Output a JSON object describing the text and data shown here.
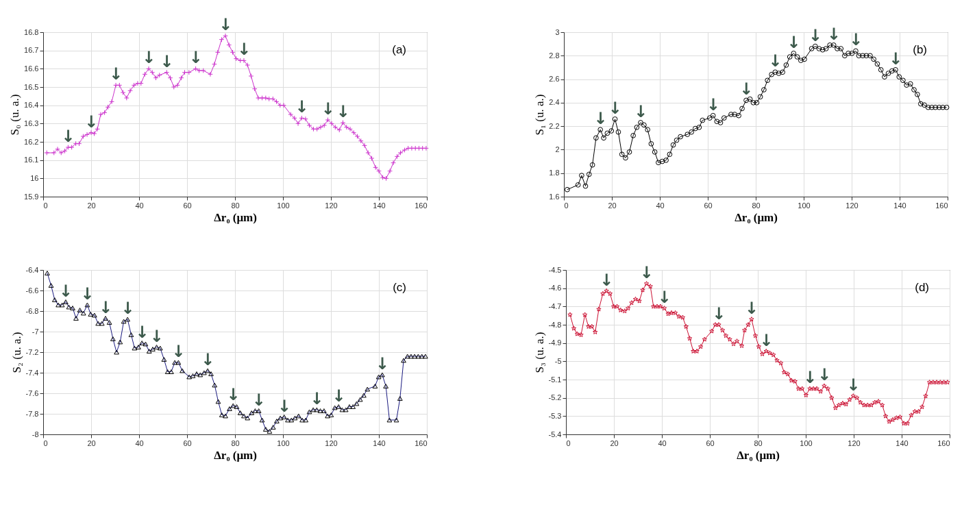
{
  "chart_data": [
    {
      "type": "line",
      "xlabel": "Δr₀ (μm)",
      "ylabel": "S₀ (u. a.)",
      "xlim": [
        0,
        160
      ],
      "xticks": [
        0,
        20,
        40,
        60,
        80,
        100,
        120,
        140,
        160
      ],
      "ylim": [
        15.9,
        16.8
      ],
      "yticks": [
        15.9,
        16,
        16.1,
        16.2,
        16.3,
        16.4,
        16.5,
        16.6,
        16.7,
        16.8
      ],
      "grid": true,
      "marker": "cross",
      "x": [
        1.5,
        4.5,
        6,
        7.5,
        9,
        10.4,
        11.9,
        13.6,
        15,
        16.7,
        18.3,
        20,
        21.3,
        22.6,
        24,
        25.6,
        27,
        28.6,
        30.3,
        31.8,
        33.3,
        34.8,
        36.3,
        37.9,
        39.4,
        40.8,
        42.4,
        44,
        45.5,
        47,
        48.5,
        51.5,
        53,
        54.5,
        56,
        57.6,
        59,
        60.8,
        63.6,
        65,
        66.8,
        69.7,
        71.4,
        72.8,
        74.4,
        76,
        77.5,
        79,
        80.5,
        82.2,
        83.7,
        85.2,
        86.7,
        88.2,
        89.7,
        91.3,
        92.8,
        94.2,
        95.8,
        97.3,
        98.8,
        100.3,
        103.2,
        104.8,
        106.3,
        107.8,
        109.4,
        111,
        112.7,
        114.2,
        115.7,
        117.2,
        118.7,
        120.3,
        121.8,
        123.5,
        125,
        126.5,
        128,
        129.5,
        131,
        132.5,
        134,
        135.5,
        137,
        138.6,
        140,
        141.6,
        143,
        144.6,
        146,
        147.6,
        149,
        150.7,
        152.2,
        153.7,
        155.2,
        156.7,
        158.2,
        159.7
      ],
      "series": [
        {
          "color": "#cc33cc",
          "values": [
            16.14,
            16.14,
            16.16,
            16.14,
            16.15,
            16.17,
            16.17,
            16.19,
            16.19,
            16.23,
            16.24,
            16.25,
            16.245,
            16.27,
            16.35,
            16.36,
            16.39,
            16.42,
            16.51,
            16.51,
            16.47,
            16.44,
            16.48,
            16.51,
            16.52,
            16.52,
            16.57,
            16.6,
            16.58,
            16.55,
            16.565,
            16.58,
            16.55,
            16.5,
            16.51,
            16.55,
            16.58,
            16.58,
            16.6,
            16.59,
            16.59,
            16.57,
            16.625,
            16.69,
            16.76,
            16.78,
            16.73,
            16.69,
            16.655,
            16.645,
            16.645,
            16.62,
            16.56,
            16.49,
            16.44,
            16.44,
            16.44,
            16.435,
            16.435,
            16.42,
            16.4,
            16.4,
            16.35,
            16.33,
            16.3,
            16.33,
            16.325,
            16.29,
            16.27,
            16.27,
            16.28,
            16.29,
            16.32,
            16.3,
            16.28,
            16.265,
            16.305,
            16.28,
            16.27,
            16.25,
            16.23,
            16.205,
            16.18,
            16.14,
            16.11,
            16.06,
            16.04,
            16.005,
            16.0,
            16.04,
            16.085,
            16.12,
            16.14,
            16.155,
            16.165,
            16.165,
            16.165,
            16.165,
            16.165,
            16.165
          ]
        }
      ],
      "annotations": [
        "(a)",
        {
          "text": "↓",
          "x": 10.4,
          "y": 16.17
        },
        {
          "text": "↓",
          "x": 20,
          "y": 16.25
        },
        {
          "text": "↓",
          "x": 30.3,
          "y": 16.51
        },
        {
          "text": "↓",
          "x": 44,
          "y": 16.6
        },
        {
          "text": "↓",
          "x": 51.5,
          "y": 16.58
        },
        {
          "text": "↓",
          "x": 63.6,
          "y": 16.6
        },
        {
          "text": "↓",
          "x": 76,
          "y": 16.78
        },
        {
          "text": "↓",
          "x": 83.7,
          "y": 16.645
        },
        {
          "text": "↓",
          "x": 107.8,
          "y": 16.33
        },
        {
          "text": "↓",
          "x": 118.7,
          "y": 16.32
        },
        {
          "text": "↓",
          "x": 125,
          "y": 16.305
        }
      ]
    },
    {
      "type": "line",
      "xlabel": "Δr₀ (μm)",
      "ylabel": "S₁ (u. a.)",
      "xlim": [
        0,
        160
      ],
      "xticks": [
        0,
        20,
        40,
        60,
        80,
        100,
        120,
        140,
        160
      ],
      "ylim": [
        1.6,
        3
      ],
      "yticks": [
        1.6,
        1.8,
        2,
        2.2,
        2.4,
        2.6,
        2.8,
        3
      ],
      "grid": true,
      "marker": "circle",
      "x": [
        1.4,
        5.9,
        7.4,
        9,
        10.5,
        11.9,
        13.4,
        15.2,
        16.6,
        18.1,
        19.8,
        21.3,
        22.7,
        24.2,
        25.7,
        27.3,
        28.9,
        30.4,
        32,
        33.4,
        34.9,
        36.4,
        37.9,
        39.4,
        41,
        42.6,
        44.1,
        45.6,
        47,
        48.6,
        51.5,
        53.2,
        54.8,
        56.4,
        57.8,
        60.8,
        62.2,
        63.8,
        65.3,
        66.8,
        69.7,
        71.2,
        72.9,
        74.3,
        76,
        77.6,
        79,
        80.4,
        81.9,
        83.4,
        84.9,
        86.6,
        88.1,
        89.6,
        91.2,
        92.7,
        94.2,
        95.8,
        97.3,
        98.8,
        100.3,
        103.3,
        104.8,
        106.4,
        107.9,
        109.3,
        110.9,
        112.5,
        114,
        115.5,
        117.1,
        118.6,
        120.1,
        121.7,
        123,
        124.6,
        126.1,
        127.7,
        129.2,
        130.7,
        132.2,
        133.7,
        135.3,
        136.8,
        138.3,
        139.8,
        141.4,
        142.9,
        144.5,
        146,
        147.4,
        148.8,
        150.3,
        151.9,
        153.4,
        154.9,
        156.5,
        158,
        159.6
      ],
      "series": [
        {
          "color": "#000000",
          "values": [
            1.66,
            1.7,
            1.78,
            1.69,
            1.79,
            1.87,
            2.1,
            2.17,
            2.1,
            2.14,
            2.16,
            2.26,
            2.15,
            1.96,
            1.93,
            1.98,
            2.12,
            2.19,
            2.23,
            2.21,
            2.17,
            2.05,
            1.98,
            1.89,
            1.9,
            1.91,
            1.96,
            2.04,
            2.08,
            2.11,
            2.13,
            2.15,
            2.18,
            2.19,
            2.25,
            2.27,
            2.29,
            2.24,
            2.23,
            2.27,
            2.3,
            2.3,
            2.29,
            2.35,
            2.42,
            2.43,
            2.4,
            2.4,
            2.45,
            2.51,
            2.59,
            2.64,
            2.66,
            2.65,
            2.66,
            2.72,
            2.79,
            2.82,
            2.79,
            2.76,
            2.77,
            2.86,
            2.88,
            2.86,
            2.85,
            2.86,
            2.89,
            2.89,
            2.86,
            2.86,
            2.8,
            2.82,
            2.82,
            2.84,
            2.8,
            2.8,
            2.8,
            2.8,
            2.77,
            2.73,
            2.68,
            2.62,
            2.65,
            2.67,
            2.68,
            2.62,
            2.59,
            2.55,
            2.56,
            2.51,
            2.47,
            2.39,
            2.38,
            2.36,
            2.36,
            2.36,
            2.36,
            2.36,
            2.36
          ]
        }
      ],
      "annotations": [
        "(b)",
        {
          "text": "↓",
          "x": 15.2,
          "y": 2.17
        },
        {
          "text": "↓",
          "x": 21.3,
          "y": 2.26
        },
        {
          "text": "↓",
          "x": 32,
          "y": 2.23
        },
        {
          "text": "↓",
          "x": 62.2,
          "y": 2.29
        },
        {
          "text": "↓",
          "x": 76,
          "y": 2.42
        },
        {
          "text": "↓",
          "x": 88.1,
          "y": 2.66
        },
        {
          "text": "↓",
          "x": 95.8,
          "y": 2.82
        },
        {
          "text": "↓",
          "x": 104.8,
          "y": 2.88
        },
        {
          "text": "↓",
          "x": 112.5,
          "y": 2.89
        },
        {
          "text": "↓",
          "x": 121.7,
          "y": 2.84
        },
        {
          "text": "↓",
          "x": 138.3,
          "y": 2.68
        }
      ]
    },
    {
      "type": "line",
      "xlabel": "Δr₀ (μm)",
      "ylabel": "S₂ (u. a.)",
      "xlim": [
        0,
        160
      ],
      "xticks": [
        0,
        20,
        40,
        60,
        80,
        100,
        120,
        140,
        160
      ],
      "ylim": [
        -8,
        -6.4
      ],
      "yticks": [
        -8,
        -7.8,
        -7.6,
        -7.4,
        -7.2,
        -7,
        -6.8,
        -6.6,
        -6.4
      ],
      "grid": true,
      "marker": "triangle",
      "x": [
        1.7,
        3.3,
        4.8,
        6.3,
        7.9,
        9.4,
        10.7,
        12.3,
        13.7,
        15.3,
        16.8,
        18.4,
        19.8,
        21.4,
        22.9,
        24.5,
        26,
        27.6,
        29.1,
        30.6,
        32.1,
        33.6,
        35.2,
        36.7,
        38.1,
        39.7,
        41.2,
        42.7,
        44.2,
        45.7,
        47.3,
        48.8,
        50.4,
        51.9,
        53.4,
        54.9,
        56.4,
        58,
        60.9,
        62.4,
        64,
        65.5,
        67.1,
        68.6,
        70,
        71.5,
        73,
        74.5,
        76,
        77.7,
        79.2,
        80.7,
        82.2,
        83.7,
        85.2,
        86.9,
        88.4,
        89.9,
        91.3,
        92.8,
        94.4,
        95.9,
        97.4,
        98.9,
        100.5,
        102,
        103.5,
        105,
        106.5,
        108,
        109.5,
        111,
        112.6,
        114.1,
        115.6,
        117.1,
        118.6,
        120.1,
        121.6,
        123.2,
        124.7,
        126.2,
        127.7,
        129.2,
        130.7,
        132.2,
        133.7,
        135.2,
        138.4,
        139.9,
        141.4,
        142.9,
        144.4,
        147.3,
        148.8,
        150.3,
        151.9,
        153.4,
        154.9,
        156.4,
        157.9,
        159.4
      ],
      "series": [
        {
          "color": "#1a1a80",
          "values": [
            -6.43,
            -6.55,
            -6.69,
            -6.74,
            -6.74,
            -6.71,
            -6.76,
            -6.77,
            -6.87,
            -6.79,
            -6.82,
            -6.74,
            -6.83,
            -6.84,
            -6.92,
            -6.92,
            -6.87,
            -6.91,
            -7.07,
            -7.2,
            -7.1,
            -6.9,
            -6.88,
            -7.03,
            -7.16,
            -7.15,
            -7.11,
            -7.12,
            -7.19,
            -7.17,
            -7.15,
            -7.16,
            -7.27,
            -7.39,
            -7.39,
            -7.3,
            -7.3,
            -7.38,
            -7.44,
            -7.43,
            -7.41,
            -7.42,
            -7.4,
            -7.38,
            -7.41,
            -7.52,
            -7.68,
            -7.81,
            -7.82,
            -7.75,
            -7.72,
            -7.73,
            -7.79,
            -7.82,
            -7.84,
            -7.79,
            -7.77,
            -7.77,
            -7.86,
            -7.95,
            -7.97,
            -7.93,
            -7.87,
            -7.84,
            -7.83,
            -7.86,
            -7.86,
            -7.84,
            -7.82,
            -7.86,
            -7.86,
            -7.78,
            -7.76,
            -7.76,
            -7.77,
            -7.77,
            -7.82,
            -7.81,
            -7.74,
            -7.73,
            -7.76,
            -7.76,
            -7.73,
            -7.73,
            -7.7,
            -7.66,
            -7.62,
            -7.56,
            -7.53,
            -7.44,
            -7.42,
            -7.53,
            -7.86,
            -7.86,
            -7.65,
            -7.28,
            -7.24,
            -7.24,
            -7.24,
            -7.24,
            -7.24,
            -7.24
          ]
        }
      ],
      "annotations": [
        "(c)",
        {
          "text": "↓",
          "x": 9.4,
          "y": -6.71
        },
        {
          "text": "↓",
          "x": 18.4,
          "y": -6.74
        },
        {
          "text": "↓",
          "x": 26,
          "y": -6.87
        },
        {
          "text": "↓",
          "x": 35.2,
          "y": -6.88
        },
        {
          "text": "↓",
          "x": 41.2,
          "y": -7.11
        },
        {
          "text": "↓",
          "x": 47.3,
          "y": -7.15
        },
        {
          "text": "↓",
          "x": 56.4,
          "y": -7.3
        },
        {
          "text": "↓",
          "x": 68.6,
          "y": -7.38
        },
        {
          "text": "↓",
          "x": 79.2,
          "y": -7.72
        },
        {
          "text": "↓",
          "x": 89.9,
          "y": -7.77
        },
        {
          "text": "↓",
          "x": 100.5,
          "y": -7.83
        },
        {
          "text": "↓",
          "x": 114.1,
          "y": -7.76
        },
        {
          "text": "↓",
          "x": 123.2,
          "y": -7.73
        },
        {
          "text": "↓",
          "x": 141.4,
          "y": -7.42
        }
      ]
    },
    {
      "type": "line",
      "xlabel": "Δr₀ (μm)",
      "ylabel": "S₃ (u. a.)",
      "xlim": [
        0,
        160
      ],
      "xticks": [
        0,
        20,
        40,
        60,
        80,
        100,
        120,
        140,
        160
      ],
      "ylim": [
        -5.4,
        -4.5
      ],
      "yticks": [
        -5.4,
        -5.3,
        -5.2,
        -5.1,
        -5,
        -4.9,
        -4.8,
        -4.7,
        -4.6,
        -4.5
      ],
      "grid": true,
      "marker": "star",
      "x": [
        1.7,
        3.3,
        4.7,
        6.3,
        7.9,
        9.4,
        10.8,
        12.2,
        13.7,
        15.4,
        16.9,
        18.4,
        19.9,
        21.3,
        22.8,
        24.5,
        25.9,
        27.4,
        29,
        30.6,
        32,
        33.6,
        35.2,
        36.5,
        38,
        39.4,
        41,
        42.6,
        44,
        45.6,
        47.1,
        48.7,
        50.1,
        51.6,
        53.1,
        54.6,
        56.2,
        57.8,
        60.8,
        62.3,
        63.7,
        65.3,
        66.7,
        68.3,
        69.9,
        71.3,
        73.3,
        74.5,
        76,
        77.4,
        79,
        80.4,
        81.9,
        83.5,
        85,
        86.5,
        88,
        89.6,
        91,
        92.5,
        94,
        95.5,
        97,
        98.5,
        100.1,
        101.7,
        103.2,
        104.6,
        106.2,
        107.7,
        109.2,
        110.8,
        112.4,
        113.8,
        115.4,
        116.8,
        118.3,
        119.8,
        121.3,
        122.8,
        124.3,
        125.8,
        127.3,
        128.8,
        130.3,
        131.9,
        133.3,
        134.8,
        136.3,
        137.8,
        139.3,
        140.9,
        142.4,
        144,
        145.5,
        147,
        148.5,
        150,
        151.6,
        153.1,
        154.6,
        156.1,
        157.6,
        159.1
      ],
      "series": [
        {
          "color": "#cc1133",
          "values": [
            -4.745,
            -4.82,
            -4.85,
            -4.855,
            -4.745,
            -4.81,
            -4.81,
            -4.84,
            -4.715,
            -4.63,
            -4.615,
            -4.63,
            -4.7,
            -4.7,
            -4.72,
            -4.725,
            -4.71,
            -4.68,
            -4.66,
            -4.67,
            -4.61,
            -4.575,
            -4.59,
            -4.7,
            -4.7,
            -4.7,
            -4.71,
            -4.74,
            -4.735,
            -4.735,
            -4.755,
            -4.76,
            -4.81,
            -4.875,
            -4.945,
            -4.945,
            -4.92,
            -4.88,
            -4.835,
            -4.8,
            -4.8,
            -4.83,
            -4.86,
            -4.88,
            -4.905,
            -4.89,
            -4.915,
            -4.83,
            -4.8,
            -4.77,
            -4.86,
            -4.92,
            -4.96,
            -4.945,
            -4.955,
            -4.965,
            -4.995,
            -5.01,
            -5.06,
            -5.07,
            -5.105,
            -5.11,
            -5.15,
            -5.15,
            -5.185,
            -5.15,
            -5.15,
            -5.15,
            -5.165,
            -5.135,
            -5.15,
            -5.2,
            -5.255,
            -5.24,
            -5.23,
            -5.235,
            -5.21,
            -5.19,
            -5.2,
            -5.225,
            -5.24,
            -5.24,
            -5.24,
            -5.225,
            -5.22,
            -5.24,
            -5.3,
            -5.33,
            -5.32,
            -5.31,
            -5.305,
            -5.34,
            -5.34,
            -5.295,
            -5.275,
            -5.275,
            -5.25,
            -5.19,
            -5.115,
            -5.115,
            -5.115,
            -5.115,
            -5.115,
            -5.115
          ]
        }
      ],
      "annotations": [
        "(d)",
        {
          "text": "↓",
          "x": 16.9,
          "y": -4.615
        },
        {
          "text": "↓",
          "x": 33.6,
          "y": -4.575
        },
        {
          "text": "↓",
          "x": 41,
          "y": -4.71
        },
        {
          "text": "↓",
          "x": 63.7,
          "y": -4.8
        },
        {
          "text": "↓",
          "x": 77.4,
          "y": -4.77
        },
        {
          "text": "↓",
          "x": 83.5,
          "y": -4.945
        },
        {
          "text": "↓",
          "x": 101.7,
          "y": -5.15
        },
        {
          "text": "↓",
          "x": 107.7,
          "y": -5.135
        },
        {
          "text": "↓",
          "x": 119.8,
          "y": -5.19
        }
      ]
    }
  ]
}
